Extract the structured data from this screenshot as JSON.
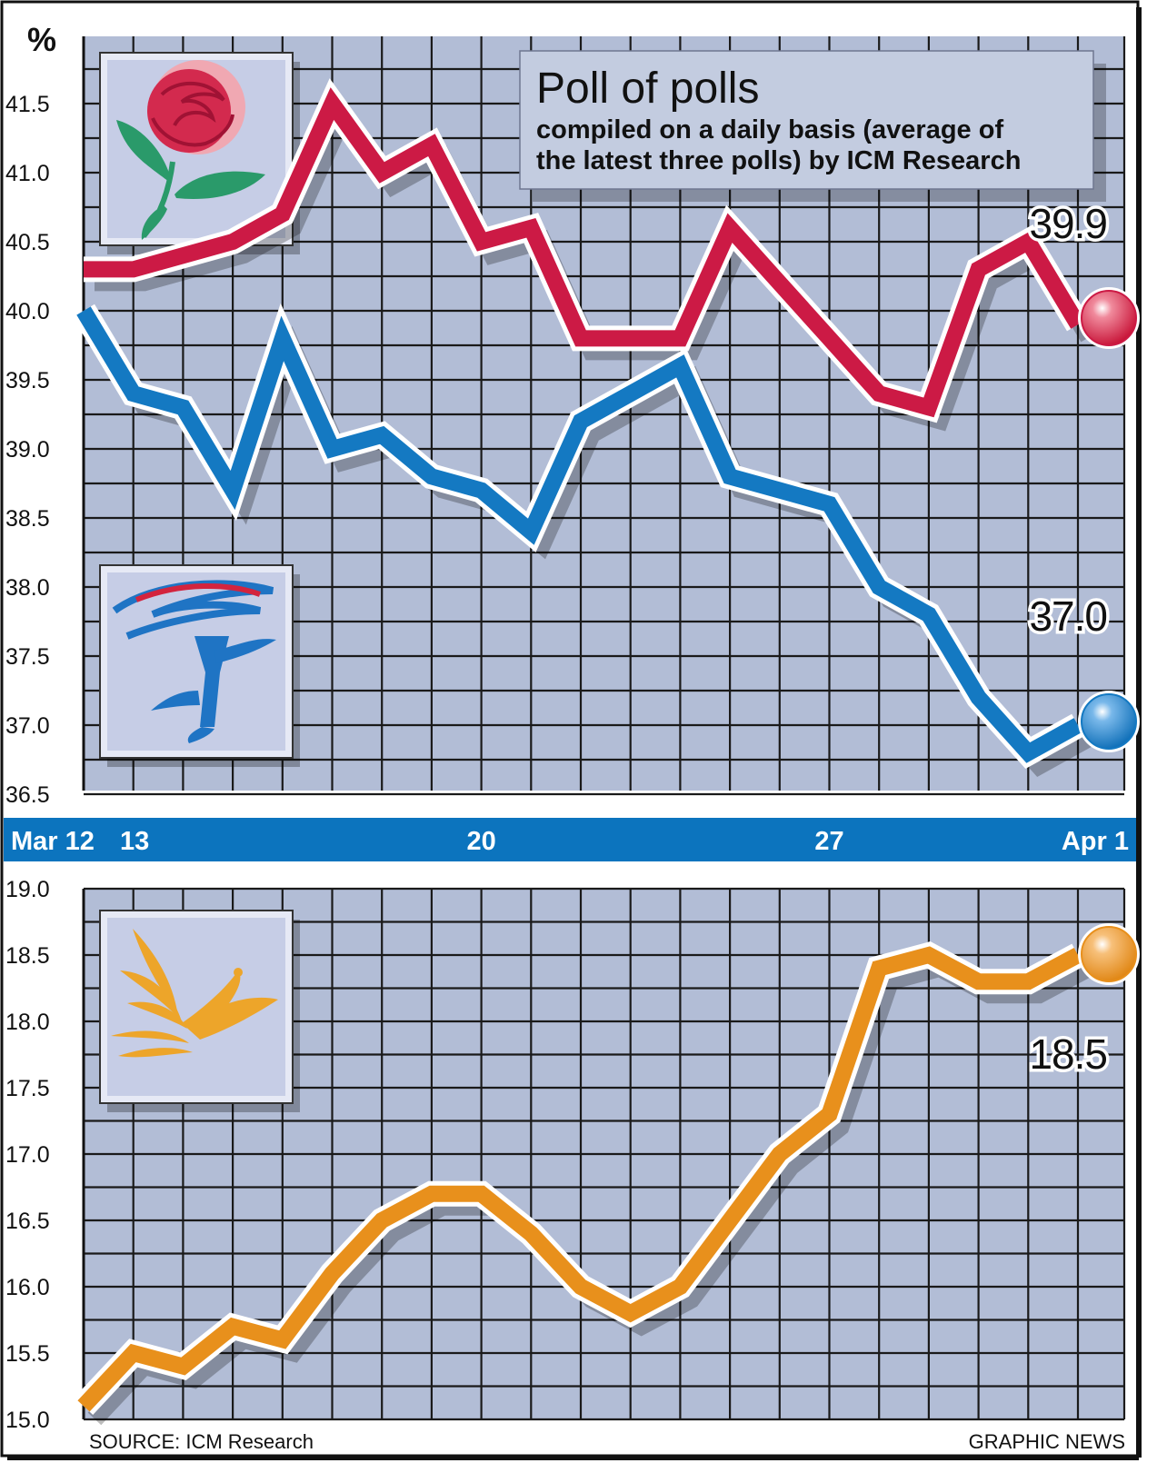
{
  "header": {
    "title": "Poll of polls",
    "subtitle_line1": "compiled on a daily basis (average of",
    "subtitle_line2": "the latest three polls) by ICM Research",
    "unit": "%"
  },
  "footer": {
    "source": "SOURCE: ICM Research",
    "credit": "GRAPHIC NEWS"
  },
  "date_axis": {
    "labels": [
      {
        "day": 0,
        "text": "Mar 12"
      },
      {
        "day": 1,
        "text": "13"
      },
      {
        "day": 8,
        "text": "20"
      },
      {
        "day": 15,
        "text": "27"
      },
      {
        "day": 20,
        "text": "Apr 1"
      }
    ]
  },
  "colors": {
    "labour": "#cc1a45",
    "conservative": "#1479c2",
    "libdem": "#e8901c",
    "plot_bg": "#b2bdd6",
    "grid": "#1a1a1a",
    "date_band": "#0c74be"
  },
  "icons": {
    "labour": "rose-icon",
    "conservative": "torch-icon",
    "libdem": "bird-icon"
  },
  "chart_data": [
    {
      "type": "line",
      "ylabel": "%",
      "ylim": [
        36.5,
        41.5
      ],
      "yticks": [
        "41.5",
        "41.0",
        "40.5",
        "40.0",
        "39.5",
        "39.0",
        "38.5",
        "38.0",
        "37.5",
        "37.0",
        "36.5"
      ],
      "x": [
        0,
        1,
        2,
        3,
        4,
        5,
        6,
        7,
        8,
        9,
        10,
        11,
        12,
        13,
        14,
        15,
        16,
        17,
        18,
        19,
        20
      ],
      "grid": true,
      "series": [
        {
          "key": "labour",
          "values": [
            40.3,
            40.3,
            40.4,
            40.5,
            40.7,
            41.5,
            41.0,
            41.2,
            40.5,
            40.6,
            39.8,
            39.8,
            39.8,
            40.6,
            40.2,
            39.8,
            39.4,
            39.3,
            40.3,
            40.5,
            39.9
          ],
          "end_label": "39.9"
        },
        {
          "key": "conservative",
          "values": [
            40.0,
            39.4,
            39.3,
            38.7,
            39.8,
            39.0,
            39.1,
            38.8,
            38.7,
            38.4,
            39.2,
            39.4,
            39.6,
            38.8,
            38.7,
            38.6,
            38.0,
            37.8,
            37.2,
            36.8,
            37.0
          ],
          "end_label": "37.0"
        }
      ]
    },
    {
      "type": "line",
      "ylabel": "",
      "ylim": [
        15.0,
        19.0
      ],
      "yticks": [
        "19.0",
        "18.5",
        "18.0",
        "17.5",
        "17.0",
        "16.5",
        "16.0",
        "15.5",
        "15.0"
      ],
      "x": [
        0,
        1,
        2,
        3,
        4,
        5,
        6,
        7,
        8,
        9,
        10,
        11,
        12,
        13,
        14,
        15,
        16,
        17,
        18,
        19,
        20
      ],
      "grid": true,
      "series": [
        {
          "key": "libdem",
          "values": [
            15.1,
            15.5,
            15.4,
            15.7,
            15.6,
            16.1,
            16.5,
            16.7,
            16.7,
            16.4,
            16.0,
            15.8,
            16.0,
            16.5,
            17.0,
            17.3,
            18.4,
            18.5,
            18.3,
            18.3,
            18.5
          ],
          "end_label": "18.5"
        }
      ]
    }
  ]
}
